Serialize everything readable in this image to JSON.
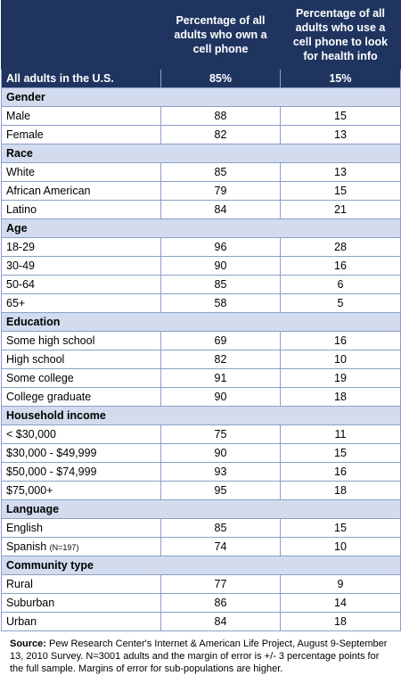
{
  "header": {
    "col2": "Percentage of all adults who own a cell phone",
    "col3": "Percentage of all adults who use a cell phone to look for health info"
  },
  "all_adults": {
    "label": "All adults in the U.S.",
    "own": "85%",
    "health": "15%"
  },
  "sections": [
    {
      "title": "Gender",
      "rows": [
        {
          "label": "Male",
          "own": "88",
          "health": "15"
        },
        {
          "label": "Female",
          "own": "82",
          "health": "13"
        }
      ]
    },
    {
      "title": "Race",
      "rows": [
        {
          "label": "White",
          "own": "85",
          "health": "13"
        },
        {
          "label": "African American",
          "own": "79",
          "health": "15"
        },
        {
          "label": "Latino",
          "own": "84",
          "health": "21"
        }
      ]
    },
    {
      "title": "Age",
      "rows": [
        {
          "label": "18-29",
          "own": "96",
          "health": "28"
        },
        {
          "label": "30-49",
          "own": "90",
          "health": "16"
        },
        {
          "label": "50-64",
          "own": "85",
          "health": "6"
        },
        {
          "label": "65+",
          "own": "58",
          "health": "5"
        }
      ]
    },
    {
      "title": "Education",
      "rows": [
        {
          "label": "Some high school",
          "own": "69",
          "health": "16"
        },
        {
          "label": "High school",
          "own": "82",
          "health": "10"
        },
        {
          "label": "Some college",
          "own": "91",
          "health": "19"
        },
        {
          "label": "College graduate",
          "own": "90",
          "health": "18"
        }
      ]
    },
    {
      "title": "Household income",
      "rows": [
        {
          "label": "< $30,000",
          "own": "75",
          "health": "11"
        },
        {
          "label": "$30,000 - $49,999",
          "own": "90",
          "health": "15"
        },
        {
          "label": "$50,000 - $74,999",
          "own": "93",
          "health": "16"
        },
        {
          "label": "$75,000+",
          "own": "95",
          "health": "18"
        }
      ]
    },
    {
      "title": "Language",
      "rows": [
        {
          "label": "English",
          "own": "85",
          "health": "15"
        },
        {
          "label": "Spanish",
          "note": "(N=197)",
          "own": "74",
          "health": "10"
        }
      ]
    },
    {
      "title": "Community type",
      "rows": [
        {
          "label": "Rural",
          "own": "77",
          "health": "9"
        },
        {
          "label": "Suburban",
          "own": "86",
          "health": "14"
        },
        {
          "label": "Urban",
          "own": "84",
          "health": "18"
        }
      ]
    }
  ],
  "source": {
    "label": "Source:",
    "text": "Pew Research Center's Internet & American Life Project, August 9-September 13, 2010 Survey. N=3001 adults and the margin of error is +/- 3 percentage points for the full sample. Margins of error for sub-populations are higher."
  }
}
